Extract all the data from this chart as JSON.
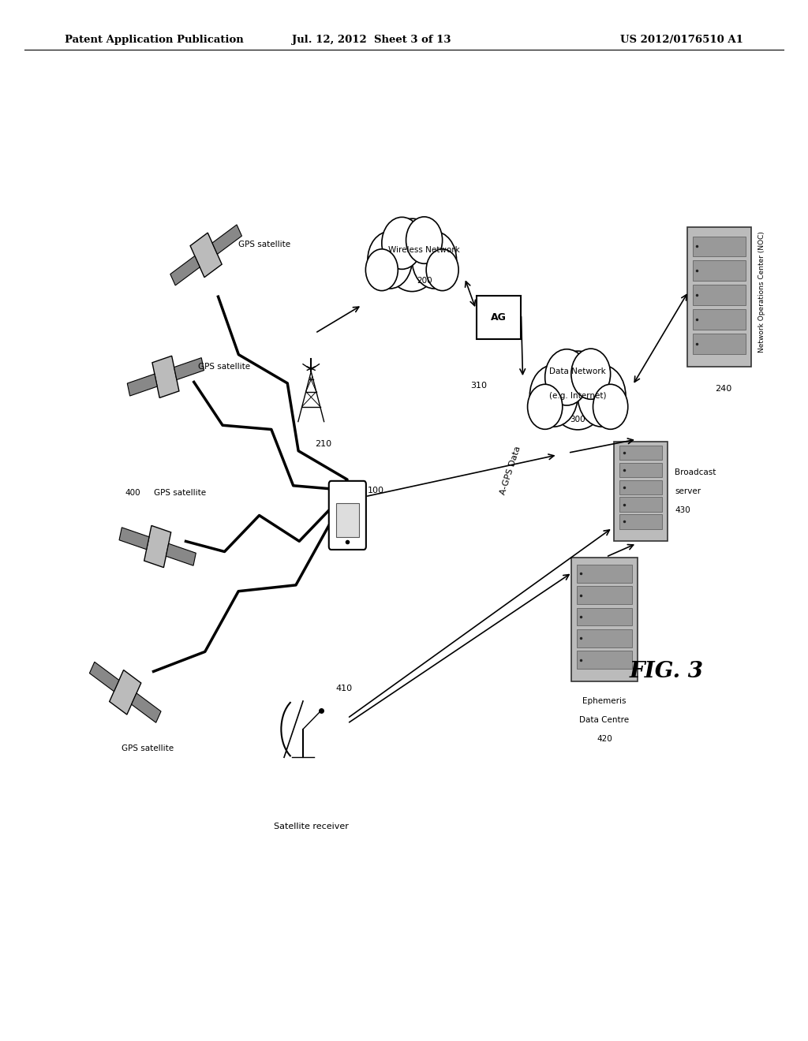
{
  "title_left": "Patent Application Publication",
  "title_mid": "Jul. 12, 2012  Sheet 3 of 13",
  "title_right": "US 2012/0176510 A1",
  "fig_label": "FIG. 3",
  "background_color": "#ffffff",
  "text_color": "#000000"
}
